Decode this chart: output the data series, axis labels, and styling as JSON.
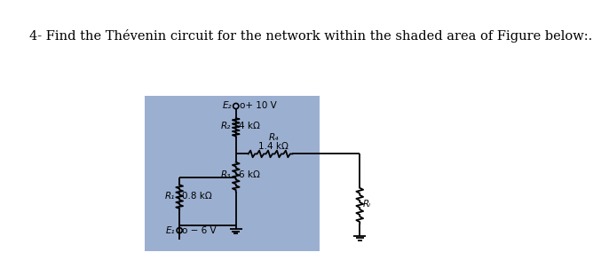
{
  "title": "4- Find the Thévenin circuit for the network within the shaded area of Figure below:.",
  "title_fontsize": 10.5,
  "bg_color": "#ffffff",
  "shaded_color": "#9bafd0",
  "fig_width": 7.2,
  "fig_height": 3.67,
  "labels": {
    "E2_label": "E₂",
    "E2_val": "o+ 10 V",
    "R2_label": "R₂",
    "R2_val": "4 kΩ",
    "R4_label": "R₄",
    "R4_val": "1.4 kΩ",
    "R1_label": "R₁",
    "R1_val": "0.8 kΩ",
    "R3_label": "R₃",
    "R3_val": "6 kΩ",
    "E1_label": "E₁",
    "E1_val": "o − 6 V",
    "RL_label": "Rₗ"
  }
}
